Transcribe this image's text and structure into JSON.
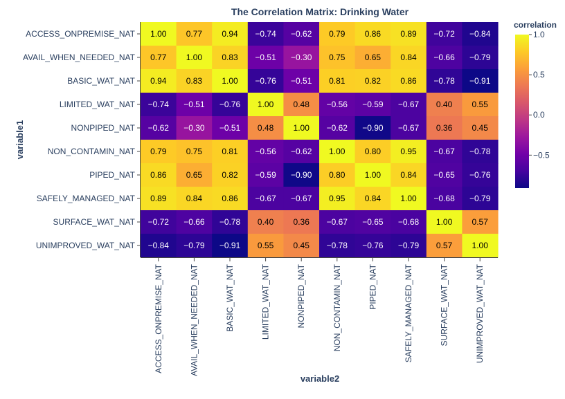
{
  "chart_data": {
    "type": "heatmap",
    "title": "The Correlation Matrix: Drinking Water",
    "xlabel": "variable2",
    "ylabel": "variable1",
    "legend_title": "correlation",
    "colorscale": [
      "#0d0887",
      "#46039f",
      "#7201a8",
      "#9c179e",
      "#bd3786",
      "#d8576b",
      "#ed7953",
      "#fb9f3a",
      "#fdca26",
      "#f0f921"
    ],
    "zrange": [
      -0.91,
      1.0
    ],
    "colorbar_ticks": [
      1.0,
      0.5,
      0.0,
      -0.5
    ],
    "colorbar_tick_labels": [
      "1.0",
      "0.5",
      "0.0",
      "−0.5"
    ],
    "x_categories": [
      "ACCESS_ONPREMISE_NAT",
      "AVAIL_WHEN_NEEDED_NAT",
      "BASIC_WAT_NAT",
      "LIMITED_WAT_NAT",
      "NONPIPED_NAT",
      "NON_CONTAMIN_NAT",
      "PIPED_NAT",
      "SAFELY_MANAGED_NAT",
      "SURFACE_WAT_NAT",
      "UNIMPROVED_WAT_NAT"
    ],
    "y_categories": [
      "ACCESS_ONPREMISE_NAT",
      "AVAIL_WHEN_NEEDED_NAT",
      "BASIC_WAT_NAT",
      "LIMITED_WAT_NAT",
      "NONPIPED_NAT",
      "NON_CONTAMIN_NAT",
      "PIPED_NAT",
      "SAFELY_MANAGED_NAT",
      "SURFACE_WAT_NAT",
      "UNIMPROVED_WAT_NAT"
    ],
    "values": [
      [
        1.0,
        0.77,
        0.94,
        -0.74,
        -0.62,
        0.79,
        0.86,
        0.89,
        -0.72,
        -0.84
      ],
      [
        0.77,
        1.0,
        0.83,
        -0.51,
        -0.3,
        0.75,
        0.65,
        0.84,
        -0.66,
        -0.79
      ],
      [
        0.94,
        0.83,
        1.0,
        -0.76,
        -0.51,
        0.81,
        0.82,
        0.86,
        -0.78,
        -0.91
      ],
      [
        -0.74,
        -0.51,
        -0.76,
        1.0,
        0.48,
        -0.56,
        -0.59,
        -0.67,
        0.4,
        0.55
      ],
      [
        -0.62,
        -0.3,
        -0.51,
        0.48,
        1.0,
        -0.62,
        -0.9,
        -0.67,
        0.36,
        0.45
      ],
      [
        0.79,
        0.75,
        0.81,
        -0.56,
        -0.62,
        1.0,
        0.8,
        0.95,
        -0.67,
        -0.78
      ],
      [
        0.86,
        0.65,
        0.82,
        -0.59,
        -0.9,
        0.8,
        1.0,
        0.84,
        -0.65,
        -0.76
      ],
      [
        0.89,
        0.84,
        0.86,
        -0.67,
        -0.67,
        0.95,
        0.84,
        1.0,
        -0.68,
        -0.79
      ],
      [
        -0.72,
        -0.66,
        -0.78,
        0.4,
        0.36,
        -0.67,
        -0.65,
        -0.68,
        1.0,
        0.57
      ],
      [
        -0.84,
        -0.79,
        -0.91,
        0.55,
        0.45,
        -0.78,
        -0.76,
        -0.79,
        0.57,
        1.0
      ]
    ]
  }
}
